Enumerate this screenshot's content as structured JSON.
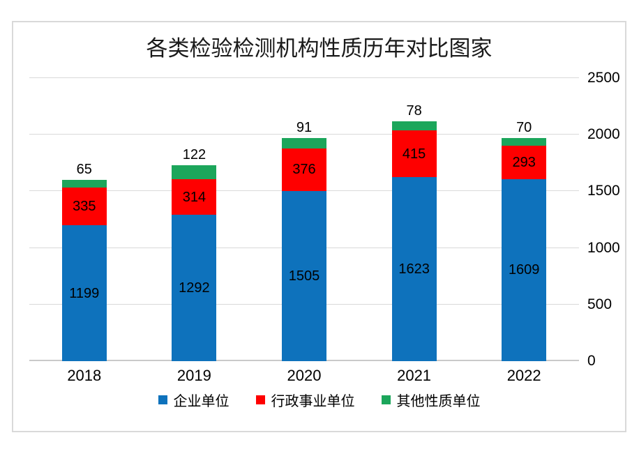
{
  "chart_data": {
    "type": "bar",
    "stacked": true,
    "title": "各类检验检测机构性质历年对比图家",
    "categories": [
      "2018",
      "2019",
      "2020",
      "2021",
      "2022"
    ],
    "series": [
      {
        "name": "企业单位",
        "color": "#0E72BC",
        "values": [
          1199,
          1292,
          1505,
          1623,
          1609
        ],
        "label_position": "inside"
      },
      {
        "name": "行政事业单位",
        "color": "#FE0000",
        "values": [
          335,
          314,
          376,
          415,
          293
        ],
        "label_position": "inside"
      },
      {
        "name": "其他性质单位",
        "color": "#1CA65B",
        "values": [
          65,
          122,
          91,
          78,
          70
        ],
        "label_position": "above"
      }
    ],
    "y_axis": {
      "position": "right",
      "min": 0,
      "max": 2500,
      "tick_interval": 500,
      "ticks": [
        0,
        500,
        1000,
        1500,
        2000,
        2500
      ]
    },
    "grid": true,
    "legend_position": "bottom",
    "colors": {
      "gridline": "#D9D9D9",
      "axis_line": "#C9C9C9",
      "chart_border": "#D9D9D9",
      "background": "#FFFFFF",
      "label_text": "#000000"
    }
  }
}
